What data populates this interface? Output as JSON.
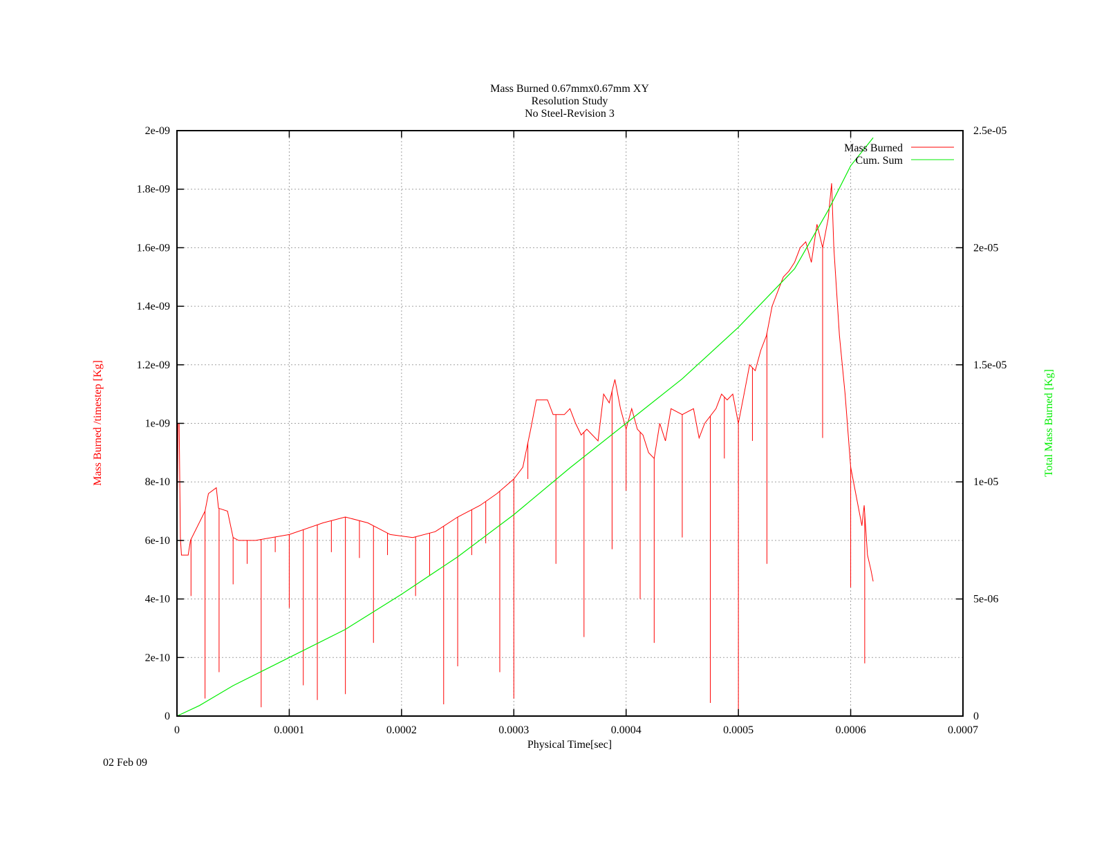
{
  "title_lines": [
    "Mass Burned 0.67mmx0.67mm XY",
    "Resolution Study",
    "No Steel-Revision 3"
  ],
  "date_stamp": "02 Feb 09",
  "colors": {
    "mass_burned": "#ff0000",
    "cum_sum": "#00ee00",
    "grid": "#a0a0a0",
    "axes": "#000000"
  },
  "chart_data": {
    "type": "line",
    "xlabel": "Physical Time[sec]",
    "ylabel_left": "Mass Burned /timestep  [Kg]",
    "ylabel_right": "Total Mass Burned [Kg]",
    "xlim": [
      0,
      0.0007
    ],
    "ylim_left": [
      0,
      2e-09
    ],
    "ylim_right": [
      0,
      2.5e-05
    ],
    "x_ticks": [
      "0",
      "0.0001",
      "0.0002",
      "0.0003",
      "0.0004",
      "0.0005",
      "0.0006",
      "0.0007"
    ],
    "y_left_ticks": [
      "0",
      "2e-10",
      "4e-10",
      "6e-10",
      "8e-10",
      "1e-09",
      "1.2e-09",
      "1.4e-09",
      "1.6e-09",
      "1.8e-09",
      "2e-09"
    ],
    "y_right_ticks": [
      "0",
      "5e-06",
      "1e-05",
      "1.5e-05",
      "2e-05",
      "2.5e-05"
    ],
    "grid": true,
    "legend_position": "top-right",
    "series": [
      {
        "name": "Mass Burned",
        "axis": "left",
        "color": "#ff0000",
        "points": [
          [
            0,
            6e-10
          ],
          [
            1e-06,
            1e-09
          ],
          [
            2e-06,
            1e-09
          ],
          [
            3e-06,
            6.1e-10
          ],
          [
            4e-06,
            5.5e-10
          ],
          [
            1e-05,
            5.5e-10
          ],
          [
            1.2e-05,
            6e-10
          ],
          [
            2.5e-05,
            7e-10
          ],
          [
            2.8e-05,
            7.6e-10
          ],
          [
            3.5e-05,
            7.8e-10
          ],
          [
            3.7e-05,
            7.1e-10
          ],
          [
            4.5e-05,
            7e-10
          ],
          [
            5e-05,
            6.1e-10
          ],
          [
            5.5e-05,
            6e-10
          ],
          [
            7e-05,
            6e-10
          ],
          [
            0.0001,
            6.2e-10
          ],
          [
            0.00013,
            6.6e-10
          ],
          [
            0.00015,
            6.8e-10
          ],
          [
            0.00017,
            6.6e-10
          ],
          [
            0.00019,
            6.2e-10
          ],
          [
            0.00021,
            6.1e-10
          ],
          [
            0.00023,
            6.3e-10
          ],
          [
            0.00025,
            6.8e-10
          ],
          [
            0.00027,
            7.2e-10
          ],
          [
            0.000285,
            7.6e-10
          ],
          [
            0.0003,
            8.1e-10
          ],
          [
            0.000308,
            8.5e-10
          ],
          [
            0.000315,
            9.8e-10
          ],
          [
            0.00032,
            1.08e-09
          ],
          [
            0.00033,
            1.08e-09
          ],
          [
            0.000335,
            1.03e-09
          ],
          [
            0.000345,
            1.03e-09
          ],
          [
            0.00035,
            1.05e-09
          ],
          [
            0.000355,
            1e-09
          ],
          [
            0.00036,
            9.6e-10
          ],
          [
            0.000365,
            9.8e-10
          ],
          [
            0.000375,
            9.4e-10
          ],
          [
            0.00038,
            1.1e-09
          ],
          [
            0.000385,
            1.07e-09
          ],
          [
            0.00039,
            1.15e-09
          ],
          [
            0.000395,
            1.05e-09
          ],
          [
            0.0004,
            9.8e-10
          ],
          [
            0.000405,
            1.05e-09
          ],
          [
            0.00041,
            9.8e-10
          ],
          [
            0.000415,
            9.6e-10
          ],
          [
            0.00042,
            9e-10
          ],
          [
            0.000425,
            8.8e-10
          ],
          [
            0.00043,
            1e-09
          ],
          [
            0.000435,
            9.4e-10
          ],
          [
            0.00044,
            1.05e-09
          ],
          [
            0.00045,
            1.03e-09
          ],
          [
            0.00046,
            1.05e-09
          ],
          [
            0.000465,
            9.5e-10
          ],
          [
            0.00047,
            1e-09
          ],
          [
            0.00048,
            1.05e-09
          ],
          [
            0.000485,
            1.1e-09
          ],
          [
            0.00049,
            1.08e-09
          ],
          [
            0.000495,
            1.1e-09
          ],
          [
            0.0005,
            1e-09
          ],
          [
            0.000505,
            1.1e-09
          ],
          [
            0.00051,
            1.2e-09
          ],
          [
            0.000515,
            1.18e-09
          ],
          [
            0.00052,
            1.25e-09
          ],
          [
            0.000525,
            1.3e-09
          ],
          [
            0.00053,
            1.4e-09
          ],
          [
            0.000535,
            1.45e-09
          ],
          [
            0.00054,
            1.5e-09
          ],
          [
            0.000545,
            1.52e-09
          ],
          [
            0.00055,
            1.55e-09
          ],
          [
            0.000555,
            1.6e-09
          ],
          [
            0.00056,
            1.62e-09
          ],
          [
            0.000565,
            1.55e-09
          ],
          [
            0.00057,
            1.68e-09
          ],
          [
            0.000575,
            1.6e-09
          ],
          [
            0.00058,
            1.7e-09
          ],
          [
            0.000583,
            1.82e-09
          ],
          [
            0.000585,
            1.6e-09
          ],
          [
            0.00059,
            1.3e-09
          ],
          [
            0.000595,
            1.1e-09
          ],
          [
            0.0006,
            8.5e-10
          ],
          [
            0.000605,
            7.5e-10
          ],
          [
            0.00061,
            6.5e-10
          ],
          [
            0.000612,
            7.2e-10
          ],
          [
            0.000615,
            5.5e-10
          ],
          [
            0.000618,
            5e-10
          ],
          [
            0.00062,
            4.6e-10
          ]
        ],
        "spikes": [
          [
            1.25e-05,
            4.1e-10
          ],
          [
            2.5e-05,
            6e-11
          ],
          [
            3.75e-05,
            1.5e-10
          ],
          [
            5e-05,
            4.5e-10
          ],
          [
            6.25e-05,
            5.2e-10
          ],
          [
            7.5e-05,
            3e-11
          ],
          [
            8.75e-05,
            5.6e-10
          ],
          [
            0.0001,
            3.7e-10
          ],
          [
            0.0001125,
            1.05e-10
          ],
          [
            0.000125,
            5.5e-11
          ],
          [
            0.0001375,
            5.6e-10
          ],
          [
            0.00015,
            7.5e-11
          ],
          [
            0.0001625,
            5.4e-10
          ],
          [
            0.000175,
            2.5e-10
          ],
          [
            0.0001875,
            5.5e-10
          ],
          [
            0.0002125,
            4.1e-10
          ],
          [
            0.000225,
            4.8e-10
          ],
          [
            0.0002375,
            4e-11
          ],
          [
            0.00025,
            1.7e-10
          ],
          [
            0.0002625,
            5.5e-10
          ],
          [
            0.000275,
            5.9e-10
          ],
          [
            0.0002875,
            1.5e-10
          ],
          [
            0.0003,
            6e-11
          ],
          [
            0.0003125,
            8.1e-10
          ],
          [
            0.0003375,
            5.2e-10
          ],
          [
            0.0003625,
            2.7e-10
          ],
          [
            0.0003875,
            5.7e-10
          ],
          [
            0.0004,
            7.7e-10
          ],
          [
            0.0004125,
            4e-10
          ],
          [
            0.000425,
            2.5e-10
          ],
          [
            0.00045,
            6.1e-10
          ],
          [
            0.000475,
            4.5e-11
          ],
          [
            0.0004875,
            8.8e-10
          ],
          [
            0.0005,
            0
          ],
          [
            0.0005125,
            9.4e-10
          ],
          [
            0.0005254,
            5.2e-10
          ],
          [
            0.000575,
            9.5e-10
          ],
          [
            0.0006,
            4.4e-10
          ],
          [
            0.0006125,
            1.8e-10
          ]
        ]
      },
      {
        "name": "Cum. Sum",
        "axis": "right",
        "color": "#00ee00",
        "points": [
          [
            0,
            0
          ],
          [
            2e-05,
            4.5e-07
          ],
          [
            5e-05,
            1.3e-06
          ],
          [
            0.0001,
            2.5e-06
          ],
          [
            0.00015,
            3.7e-06
          ],
          [
            0.0002,
            5.2e-06
          ],
          [
            0.00025,
            6.8e-06
          ],
          [
            0.0003,
            8.6e-06
          ],
          [
            0.00035,
            1.06e-05
          ],
          [
            0.0004,
            1.25e-05
          ],
          [
            0.00045,
            1.44e-05
          ],
          [
            0.0005,
            1.66e-05
          ],
          [
            0.00055,
            1.91e-05
          ],
          [
            0.00058,
            2.16e-05
          ],
          [
            0.0006,
            2.35e-05
          ],
          [
            0.00062,
            2.47e-05
          ]
        ]
      }
    ]
  }
}
